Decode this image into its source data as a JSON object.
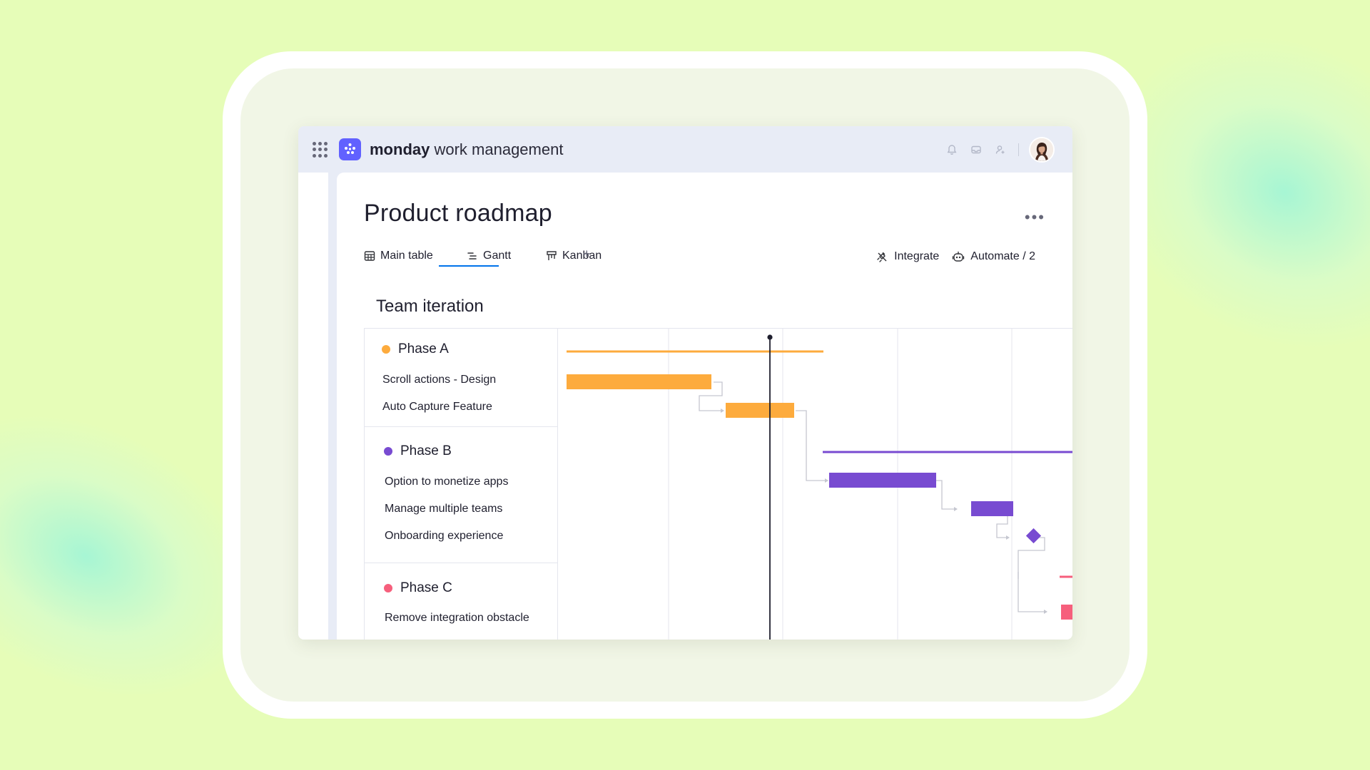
{
  "app": {
    "brand_strong": "monday",
    "brand_light": " work management"
  },
  "board": {
    "title": "Product roadmap",
    "more_label": "•••",
    "tabs": [
      {
        "label": "Main table",
        "icon": "table-icon",
        "active": false
      },
      {
        "label": "Gantt",
        "icon": "gantt-icon",
        "active": true
      },
      {
        "label": "Kanban",
        "icon": "kanban-icon",
        "active": false
      }
    ],
    "add_tab_label": "+",
    "actions": {
      "integrate_label": "Integrate",
      "automate_label": "Automate / 2"
    },
    "group_title": "Team iteration"
  },
  "phases": [
    {
      "name": "Phase A",
      "color": "#fdab3d",
      "tasks": [
        "Scroll actions - Design",
        "Auto Capture Feature"
      ]
    },
    {
      "name": "Phase B",
      "color": "#784bd1",
      "tasks": [
        "Option to monetize apps",
        "Manage multiple teams",
        "Onboarding experience"
      ]
    },
    {
      "name": "Phase C",
      "color": "#f65f7c",
      "tasks": [
        "Remove integration obstacle"
      ]
    }
  ],
  "colors": {
    "accent": "#6161ff",
    "tab_underline": "#0073ea",
    "today_line": "#1f1f2e"
  },
  "icons": [
    "apps-grid-icon",
    "monday-logo-icon",
    "bell-icon",
    "inbox-icon",
    "invite-user-icon",
    "avatar",
    "integrate-icon",
    "automate-icon"
  ]
}
